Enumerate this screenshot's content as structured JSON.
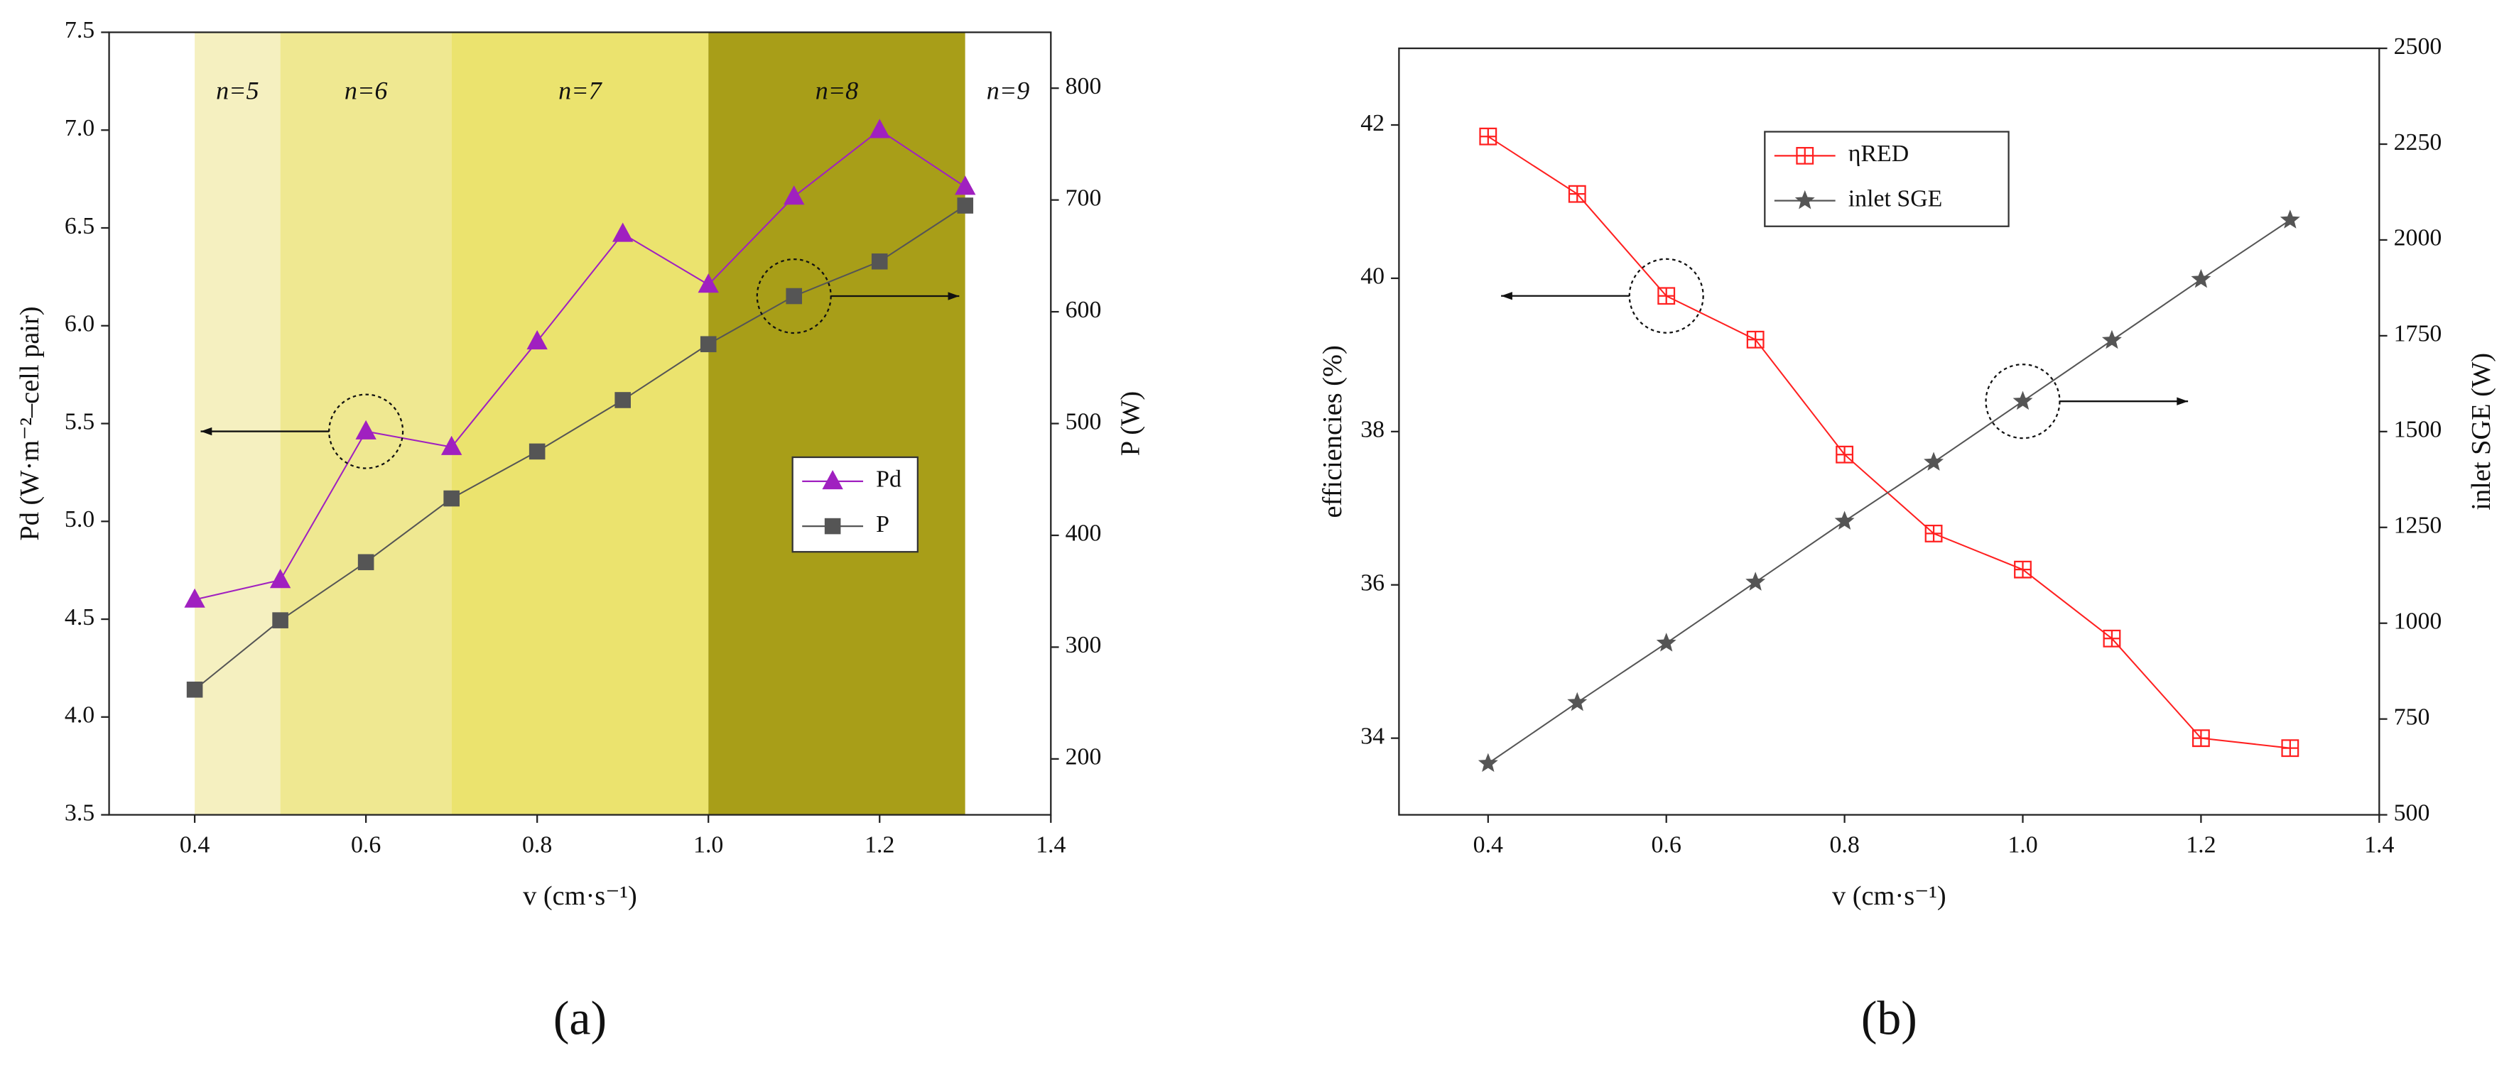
{
  "chart_data": [
    {
      "type": "line",
      "panel_label": "(a)",
      "xlabel": "v (cm·s⁻¹)",
      "ylabel": "Pd (W·m⁻²–cell pair)",
      "y2label": "P (W)",
      "x": [
        0.4,
        0.5,
        0.6,
        0.7,
        0.8,
        0.9,
        1.0,
        1.1,
        1.2,
        1.3
      ],
      "series": [
        {
          "name": "Pd",
          "color": "#a020c0",
          "marker": "triangle",
          "axis": "y",
          "values": [
            4.6,
            4.7,
            5.46,
            5.38,
            5.92,
            6.47,
            6.21,
            6.66,
            7.0,
            6.71
          ]
        },
        {
          "name": "P",
          "color": "#555555",
          "marker": "square",
          "axis": "y2",
          "values": [
            262,
            324,
            376,
            433,
            475,
            521,
            571,
            614,
            645,
            695
          ]
        }
      ],
      "regions": [
        {
          "label": "n=5",
          "x": [
            0.4,
            0.5
          ],
          "color": "#f5f0c0"
        },
        {
          "label": "n=6",
          "x": [
            0.5,
            0.7
          ],
          "color": "#efe891"
        },
        {
          "label": "n=7",
          "x": [
            0.7,
            1.0
          ],
          "color": "#ebe36e"
        },
        {
          "label": "n=8",
          "x": [
            1.0,
            1.3
          ],
          "color": "#a89e18"
        },
        {
          "label": "n=9",
          "x": [
            1.3,
            1.4
          ],
          "color": "#ffffff"
        }
      ],
      "xlim": [
        0.3,
        1.4
      ],
      "xticks": [
        0.4,
        0.6,
        0.8,
        {
          "value": 1,
          "label": "1.0"
        },
        1.2,
        1.4
      ],
      "ylim": [
        3.5,
        7.5
      ],
      "yticks": [
        3.5,
        {
          "value": 4,
          "label": "4.0"
        },
        4.5,
        {
          "value": 5,
          "label": "5.0"
        },
        5.5,
        {
          "value": 6,
          "label": "6.0"
        },
        6.5,
        {
          "value": 7,
          "label": "7.0"
        },
        7.5
      ],
      "y2lim": [
        150,
        850
      ],
      "y2ticks": [
        200,
        300,
        400,
        500,
        600,
        700,
        800
      ],
      "legend": "center-right"
    },
    {
      "type": "line",
      "panel_label": "(b)",
      "xlabel": "v (cm·s⁻¹)",
      "ylabel": "efficiencies (%)",
      "y2label": "inlet SGE (W)",
      "x": [
        0.4,
        0.5,
        0.6,
        0.7,
        0.8,
        0.9,
        1.0,
        1.1,
        1.2,
        1.3
      ],
      "series": [
        {
          "name": "ηRED",
          "color": "#ff2020",
          "marker": "open-square",
          "axis": "y",
          "values": [
            41.85,
            41.1,
            39.77,
            39.2,
            37.7,
            36.67,
            36.2,
            35.3,
            34.0,
            33.87
          ]
        },
        {
          "name": "inlet SGE",
          "color": "#555555",
          "marker": "star",
          "axis": "y2",
          "values": [
            634,
            793,
            948,
            1107,
            1266,
            1420,
            1579,
            1738,
            1897,
            2052
          ]
        }
      ],
      "xlim": [
        0.3,
        1.4
      ],
      "xticks": [
        0.4,
        0.6,
        0.8,
        {
          "value": 1,
          "label": "1.0"
        },
        1.2,
        1.4
      ],
      "ylim": [
        33,
        43
      ],
      "yticks": [
        34,
        36,
        38,
        40,
        42
      ],
      "y2lim": [
        500,
        2500
      ],
      "y2ticks": [
        500,
        750,
        1000,
        1250,
        1500,
        1750,
        2000,
        2250,
        2500
      ],
      "legend": "upper-center"
    }
  ]
}
